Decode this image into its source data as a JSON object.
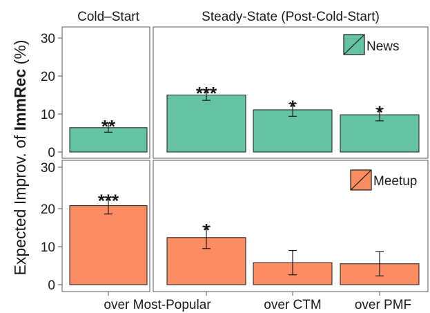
{
  "chart_data": {
    "type": "bar",
    "ylabel": {
      "prefix": "Expected Improv. of ",
      "bold": "ImmRec",
      "suffix": " (%)"
    },
    "ylim": [
      0,
      32
    ],
    "yticks": [
      "0",
      "10",
      "20",
      "30"
    ],
    "grid": false,
    "legend_position": "top-right of each row",
    "facet_columns": [
      "Cold–Start",
      "Steady-State (Post-Cold-Start)"
    ],
    "categories": [
      "over Most-Popular",
      "over CTM",
      "over PMF"
    ],
    "series": [
      {
        "name": "News",
        "color": "#66c2a5",
        "cold_start": {
          "category": "over Most-Popular",
          "value": 6.4,
          "error_low": 5.2,
          "error_high": 7.6,
          "significance": "**"
        },
        "steady_state": [
          {
            "category": "over Most-Popular",
            "value": 15.0,
            "error_low": 13.6,
            "error_high": 16.4,
            "significance": "***"
          },
          {
            "category": "over CTM",
            "value": 11.1,
            "error_low": 9.4,
            "error_high": 12.8,
            "significance": "*"
          },
          {
            "category": "over PMF",
            "value": 9.8,
            "error_low": 8.2,
            "error_high": 11.4,
            "significance": "*"
          }
        ]
      },
      {
        "name": "Meetup",
        "color": "#fc8d62",
        "cold_start": {
          "category": "over Most-Popular",
          "value": 20.8,
          "error_low": 18.6,
          "error_high": 23.0,
          "significance": "***"
        },
        "steady_state": [
          {
            "category": "over Most-Popular",
            "value": 12.4,
            "error_low": 9.5,
            "error_high": 15.3,
            "significance": "*"
          },
          {
            "category": "over CTM",
            "value": 5.8,
            "error_low": 2.6,
            "error_high": 9.0,
            "significance": ""
          },
          {
            "category": "over PMF",
            "value": 5.5,
            "error_low": 2.3,
            "error_high": 8.7,
            "significance": ""
          }
        ]
      }
    ]
  }
}
